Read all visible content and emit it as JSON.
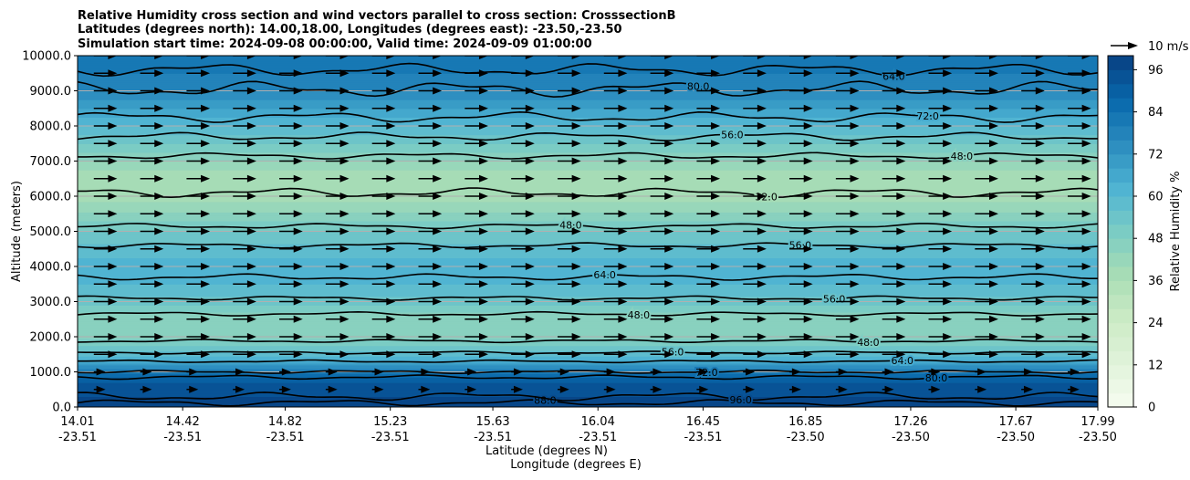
{
  "chart_data": {
    "type": "heatmap",
    "title_lines": [
      "Relative Humidity cross section and wind vectors parallel to cross section: CrosssectionB",
      "Latitudes (degrees north): 14.00,18.00, Longitudes (degrees east): -23.50,-23.50",
      "Simulation start time: 2024-09-08 00:00:00, Valid time: 2024-09-09 01:00:00"
    ],
    "xlabel_lat": "Latitude (degrees N)",
    "xlabel_lon": "Longitude (degrees E)",
    "ylabel": "Altitude (meters)",
    "colorbar_label": "Relative Humidity %",
    "quiver_key_label": "10 m/s",
    "ylim": [
      0,
      10000
    ],
    "xlim": [
      14.01,
      17.99
    ],
    "y_ticks": [
      "0.0",
      "1000.0",
      "2000.0",
      "3000.0",
      "4000.0",
      "5000.0",
      "6000.0",
      "7000.0",
      "8000.0",
      "9000.0",
      "10000.0"
    ],
    "x_ticks": [
      {
        "value": 14.01,
        "lat": "14.01",
        "lon": "-23.51"
      },
      {
        "value": 14.42,
        "lat": "14.42",
        "lon": "-23.51"
      },
      {
        "value": 14.82,
        "lat": "14.82",
        "lon": "-23.51"
      },
      {
        "value": 15.23,
        "lat": "15.23",
        "lon": "-23.51"
      },
      {
        "value": 15.63,
        "lat": "15.63",
        "lon": "-23.51"
      },
      {
        "value": 16.04,
        "lat": "16.04",
        "lon": "-23.51"
      },
      {
        "value": 16.45,
        "lat": "16.45",
        "lon": "-23.51"
      },
      {
        "value": 16.85,
        "lat": "16.85",
        "lon": "-23.50"
      },
      {
        "value": 17.26,
        "lat": "17.26",
        "lon": "-23.50"
      },
      {
        "value": 17.67,
        "lat": "17.67",
        "lon": "-23.50"
      },
      {
        "value": 17.99,
        "lat": "17.99",
        "lon": "-23.50"
      }
    ],
    "colorbar_ticks": [
      "0",
      "12",
      "24",
      "36",
      "48",
      "60",
      "72",
      "84",
      "96"
    ],
    "colorbar_range": [
      0,
      100
    ],
    "colorbar_levels": 25,
    "colormap": [
      "#f7fcf0",
      "#e0f3db",
      "#ccebc5",
      "#a8ddb5",
      "#7bccc4",
      "#4eb3d3",
      "#2b8cbe",
      "#0868ac",
      "#084081"
    ],
    "grid": true,
    "rh_profile": [
      {
        "z": 0,
        "rh": 97
      },
      {
        "z": 300,
        "rh": 96
      },
      {
        "z": 600,
        "rh": 94
      },
      {
        "z": 900,
        "rh": 86
      },
      {
        "z": 1100,
        "rh": 76
      },
      {
        "z": 1300,
        "rh": 66
      },
      {
        "z": 1500,
        "rh": 58
      },
      {
        "z": 1800,
        "rh": 50
      },
      {
        "z": 2100,
        "rh": 46
      },
      {
        "z": 2500,
        "rh": 44
      },
      {
        "z": 3000,
        "rh": 54
      },
      {
        "z": 3500,
        "rh": 60
      },
      {
        "z": 4000,
        "rh": 62
      },
      {
        "z": 4500,
        "rh": 58
      },
      {
        "z": 5000,
        "rh": 52
      },
      {
        "z": 5500,
        "rh": 45
      },
      {
        "z": 6000,
        "rh": 38
      },
      {
        "z": 6500,
        "rh": 36
      },
      {
        "z": 7000,
        "rh": 44
      },
      {
        "z": 7500,
        "rh": 52
      },
      {
        "z": 8000,
        "rh": 60
      },
      {
        "z": 8500,
        "rh": 68
      },
      {
        "z": 9000,
        "rh": 76
      },
      {
        "z": 9500,
        "rh": 80
      },
      {
        "z": 10000,
        "rh": 82
      }
    ],
    "contours": [
      {
        "label": "88.0",
        "z": 120,
        "wiggle": 60
      },
      {
        "label": "96.0",
        "z": 300,
        "wiggle": 80
      },
      {
        "label": "80.0",
        "z": 850,
        "wiggle": 40
      },
      {
        "label": "72.0",
        "z": 1000,
        "wiggle": 30
      },
      {
        "label": "64.0",
        "z": 1300,
        "wiggle": 25
      },
      {
        "label": "56.0",
        "z": 1550,
        "wiggle": 25
      },
      {
        "label": "48.0",
        "z": 1880,
        "wiggle": 30
      },
      {
        "label": "48.0",
        "z": 2650,
        "wiggle": 40
      },
      {
        "label": "56.0",
        "z": 3100,
        "wiggle": 40
      },
      {
        "label": "64.0",
        "z": 3700,
        "wiggle": 60
      },
      {
        "label": "56.0",
        "z": 4600,
        "wiggle": 50
      },
      {
        "label": "48.0",
        "z": 5150,
        "wiggle": 50
      },
      {
        "label": "32.0",
        "z": 6100,
        "wiggle": 90
      },
      {
        "label": "48.0",
        "z": 7150,
        "wiggle": 60
      },
      {
        "label": "56.0",
        "z": 7700,
        "wiggle": 80
      },
      {
        "label": "72.0",
        "z": 8250,
        "wiggle": 100
      },
      {
        "label": "80.0",
        "z": 9050,
        "wiggle": 150
      },
      {
        "label": "64.0",
        "z": 9600,
        "wiggle": 120
      }
    ],
    "wind_u_ms": 9.5
  }
}
